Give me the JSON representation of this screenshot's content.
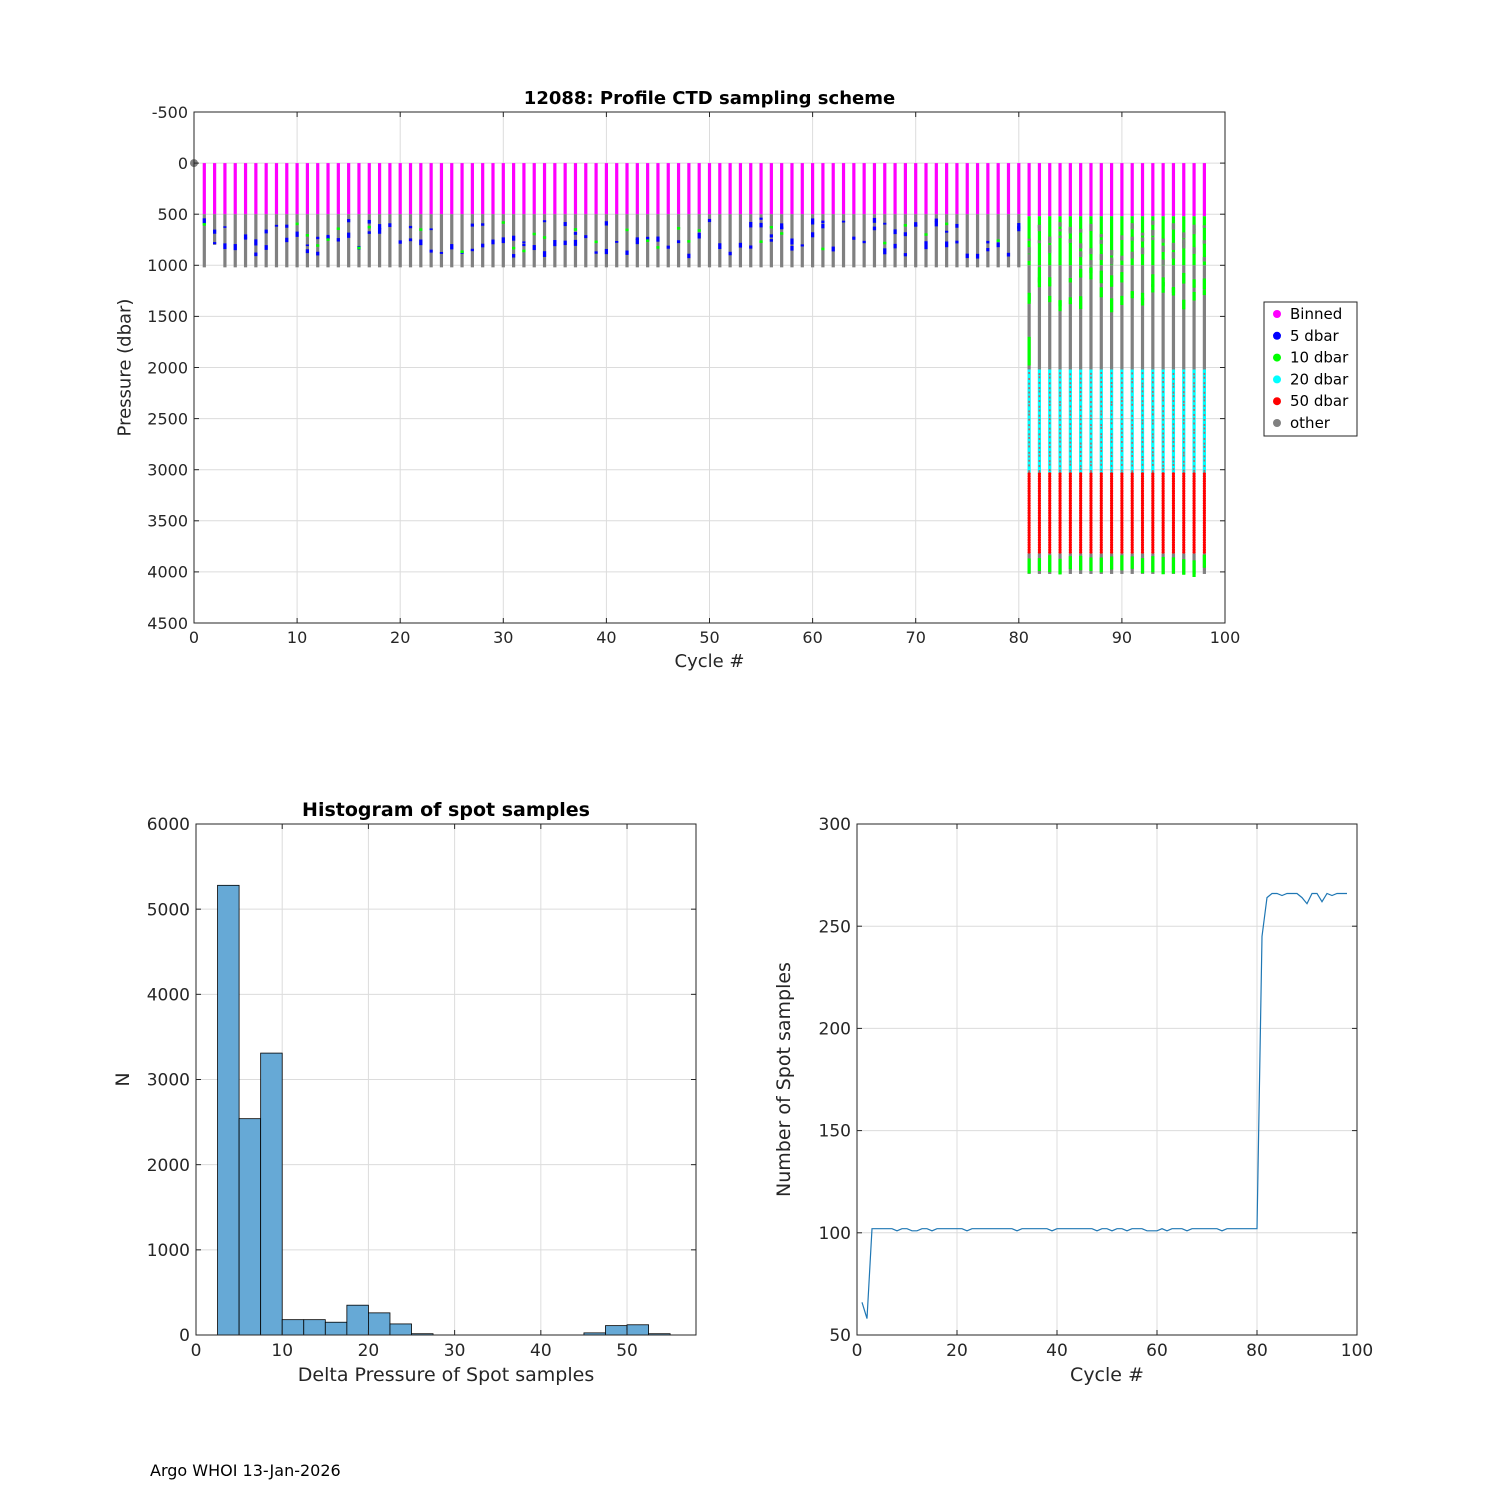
{
  "footer": "Argo WHOI 13-Jan-2026",
  "colors": {
    "binned": "#ff00ff",
    "dbar5": "#0000ff",
    "dbar10": "#00ff00",
    "dbar20": "#00ffff",
    "dbar50": "#ff0000",
    "other": "#808080",
    "hist_fill": "#66a9d6",
    "line": "#1f77b4",
    "grid": "#dcdcdc"
  },
  "chart_data": [
    {
      "id": "sampling-scheme",
      "type": "scatter",
      "title": "12088: Profile CTD sampling scheme",
      "xlabel": "Cycle #",
      "ylabel": "Pressure (dbar)",
      "xlim": [
        0,
        100
      ],
      "ylim": [
        4500,
        -500
      ],
      "y_reversed": true,
      "xticks": [
        0,
        10,
        20,
        30,
        40,
        50,
        60,
        70,
        80,
        90,
        100
      ],
      "yticks": [
        -500,
        0,
        500,
        1000,
        1500,
        2000,
        2500,
        3000,
        3500,
        4000,
        4500
      ],
      "grid": true,
      "legend": {
        "position": "outside-right",
        "entries": [
          {
            "key": "binned",
            "label": "Binned"
          },
          {
            "key": "dbar5",
            "label": "5 dbar"
          },
          {
            "key": "dbar10",
            "label": "10 dbar"
          },
          {
            "key": "dbar20",
            "label": "20 dbar"
          },
          {
            "key": "dbar50",
            "label": "50 dbar"
          },
          {
            "key": "other",
            "label": "other"
          }
        ]
      },
      "cycles": {
        "first": 1,
        "last": 98
      },
      "regimes": [
        {
          "cycles": [
            1,
            80
          ],
          "segments": [
            {
              "class": "binned",
              "from": 0,
              "to": 500
            },
            {
              "class": "other",
              "from": 500,
              "to": 1020
            },
            {
              "class": "dbar5",
              "from": 540,
              "to": 900,
              "note": "scattered 5 dbar spots"
            }
          ]
        },
        {
          "cycles": [
            81,
            98
          ],
          "segments": [
            {
              "class": "binned",
              "from": 0,
              "to": 520
            },
            {
              "class": "dbar10",
              "from": 520,
              "to": 1000
            },
            {
              "class": "other",
              "from": 1000,
              "to": 2020
            },
            {
              "class": "dbar10",
              "from": 1000,
              "to": 1400,
              "note": "intermittent"
            },
            {
              "class": "dbar20",
              "from": 2020,
              "to": 3030
            },
            {
              "class": "dbar50",
              "from": 3030,
              "to": 3820
            },
            {
              "class": "dbar10",
              "from": 3820,
              "to": 4010
            },
            {
              "class": "other",
              "from": 3820,
              "to": 4020
            }
          ]
        }
      ],
      "special_points": [
        {
          "cycle": 0,
          "pressure": 0,
          "class": "other"
        },
        {
          "cycle": 2,
          "pressure": 800,
          "class": "other",
          "note": "cycle 2 ends shallower (~800)"
        }
      ]
    },
    {
      "id": "histogram",
      "type": "bar",
      "title": "Histogram of spot samples",
      "xlabel": "Delta Pressure of Spot samples",
      "ylabel": "N",
      "xlim": [
        0,
        58
      ],
      "ylim": [
        0,
        6000
      ],
      "xticks": [
        0,
        10,
        20,
        30,
        40,
        50
      ],
      "yticks": [
        0,
        1000,
        2000,
        3000,
        4000,
        5000,
        6000
      ],
      "grid": true,
      "bin_width": 2.5,
      "bin_edges_start": 2.5,
      "values": [
        5280,
        2540,
        3310,
        180,
        180,
        150,
        350,
        260,
        130,
        15,
        0,
        0,
        0,
        0,
        0,
        0,
        0,
        25,
        110,
        120,
        15
      ]
    },
    {
      "id": "spot-count",
      "type": "line",
      "title": "",
      "xlabel": "Cycle #",
      "ylabel": "Number of Spot samples",
      "xlim": [
        0,
        100
      ],
      "ylim": [
        50,
        300
      ],
      "xticks": [
        0,
        20,
        40,
        60,
        80,
        100
      ],
      "yticks": [
        50,
        100,
        150,
        200,
        250,
        300
      ],
      "grid": true,
      "x": [
        1,
        2,
        3,
        4,
        5,
        6,
        7,
        8,
        9,
        10,
        11,
        12,
        13,
        14,
        15,
        16,
        17,
        18,
        19,
        20,
        21,
        22,
        23,
        24,
        25,
        26,
        27,
        28,
        29,
        30,
        31,
        32,
        33,
        34,
        35,
        36,
        37,
        38,
        39,
        40,
        41,
        42,
        43,
        44,
        45,
        46,
        47,
        48,
        49,
        50,
        51,
        52,
        53,
        54,
        55,
        56,
        57,
        58,
        59,
        60,
        61,
        62,
        63,
        64,
        65,
        66,
        67,
        68,
        69,
        70,
        71,
        72,
        73,
        74,
        75,
        76,
        77,
        78,
        79,
        80,
        81,
        82,
        83,
        84,
        85,
        86,
        87,
        88,
        89,
        90,
        91,
        92,
        93,
        94,
        95,
        96,
        97,
        98
      ],
      "values": [
        66,
        58,
        102,
        102,
        102,
        102,
        102,
        101,
        102,
        102,
        101,
        101,
        102,
        102,
        101,
        102,
        102,
        102,
        102,
        102,
        102,
        101,
        102,
        102,
        102,
        102,
        102,
        102,
        102,
        102,
        102,
        101,
        102,
        102,
        102,
        102,
        102,
        102,
        101,
        102,
        102,
        102,
        102,
        102,
        102,
        102,
        102,
        101,
        102,
        102,
        101,
        102,
        102,
        101,
        102,
        102,
        102,
        101,
        101,
        101,
        102,
        101,
        102,
        102,
        102,
        101,
        102,
        102,
        102,
        102,
        102,
        102,
        101,
        102,
        102,
        102,
        102,
        102,
        102,
        102,
        245,
        264,
        266,
        266,
        265,
        266,
        266,
        266,
        264,
        261,
        266,
        266,
        262,
        266,
        265,
        266,
        266,
        266
      ]
    }
  ]
}
